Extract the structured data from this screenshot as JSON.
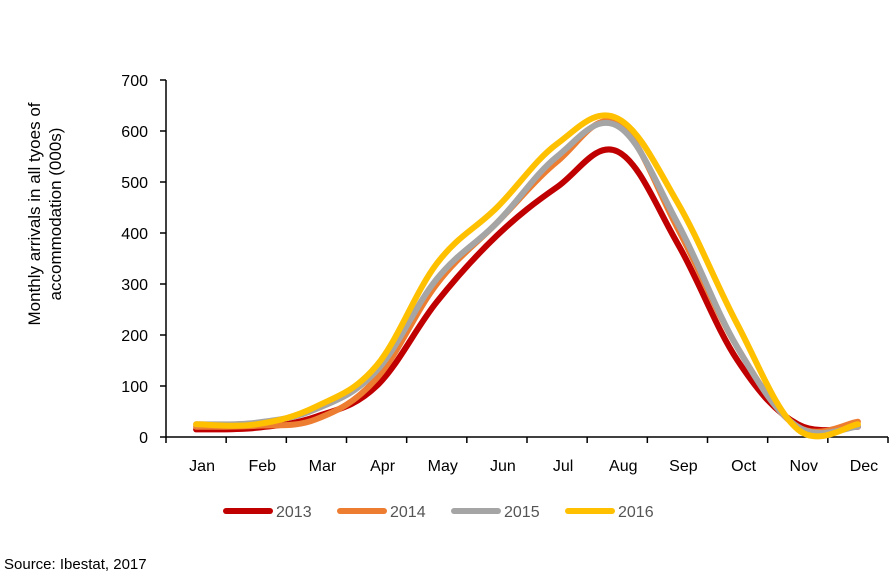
{
  "chart_data": {
    "type": "line",
    "title": "",
    "xlabel": "",
    "ylabel_lines": [
      "Monthly arrivals in all tyoes of",
      "accommodation (000s)"
    ],
    "categories": [
      "Jan",
      "Feb",
      "Mar",
      "Apr",
      "May",
      "Jun",
      "Jul",
      "Aug",
      "Sep",
      "Oct",
      "Nov",
      "Dec"
    ],
    "ylim": [
      0,
      700
    ],
    "yticks": [
      0,
      100,
      200,
      300,
      400,
      500,
      600,
      700
    ],
    "grid": false,
    "legend_position": "bottom",
    "series": [
      {
        "name": "2013",
        "color": "#C00000",
        "values": [
          15,
          18,
          40,
          100,
          265,
          395,
          490,
          560,
          380,
          150,
          25,
          20
        ]
      },
      {
        "name": "2014",
        "color": "#ED7D31",
        "values": [
          20,
          22,
          35,
          115,
          300,
          420,
          540,
          615,
          410,
          175,
          20,
          30
        ]
      },
      {
        "name": "2015",
        "color": "#A5A5A5",
        "values": [
          25,
          28,
          55,
          130,
          310,
          420,
          550,
          610,
          420,
          175,
          20,
          20
        ]
      },
      {
        "name": "2016",
        "color": "#FFC000",
        "values": [
          25,
          25,
          60,
          140,
          340,
          450,
          575,
          625,
          460,
          220,
          15,
          25
        ]
      }
    ]
  },
  "source_text": "Source: Ibestat, 2017"
}
